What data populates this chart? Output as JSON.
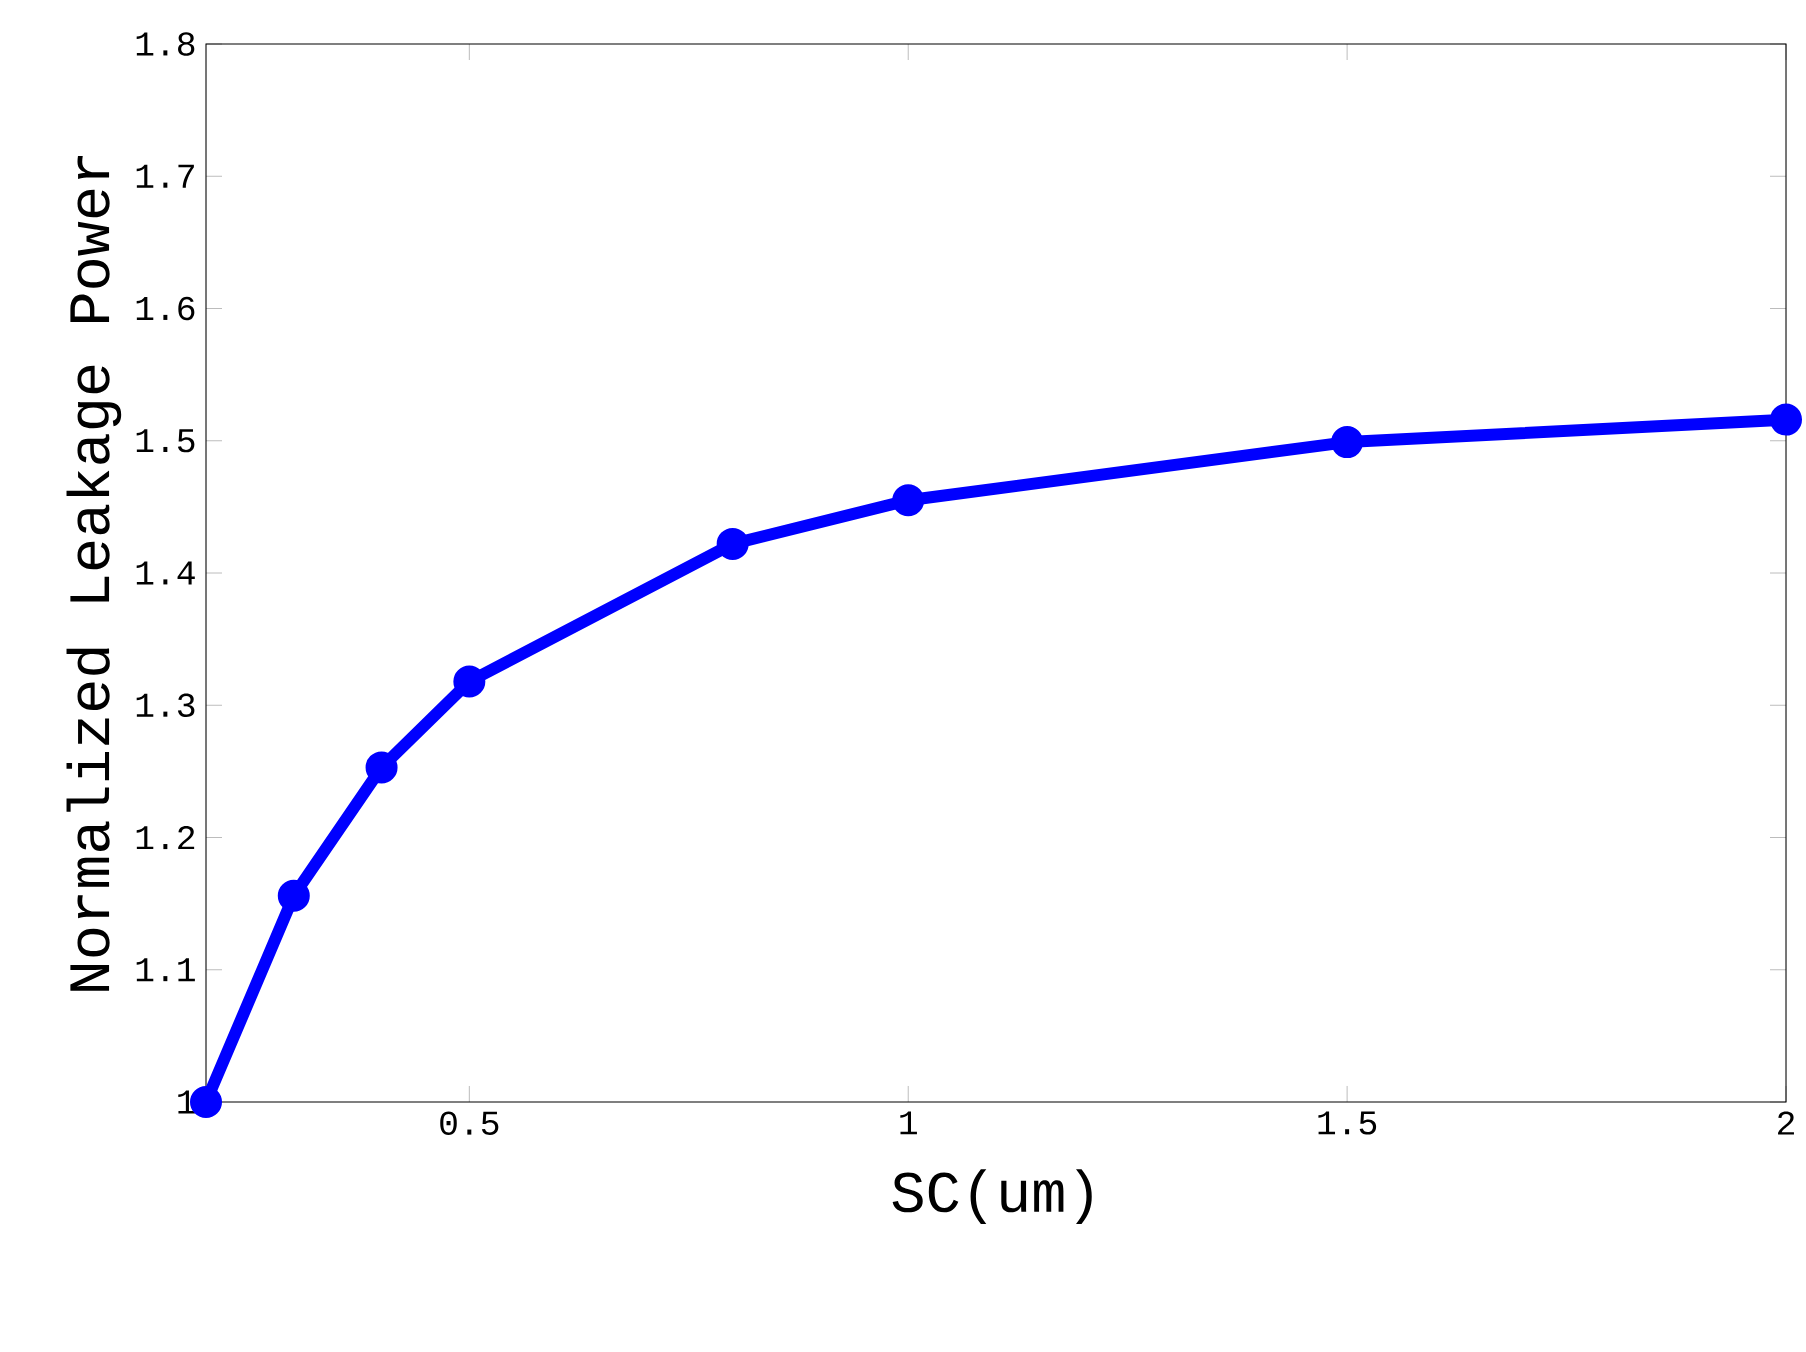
{
  "chart_data": {
    "type": "line",
    "xlabel": "SC(um)",
    "ylabel": "Normalized Leakage Power",
    "x": [
      0.2,
      0.3,
      0.4,
      0.5,
      0.8,
      1,
      1.5,
      2
    ],
    "series": [
      {
        "color": "#0000ff",
        "values": [
          1.0,
          1.156,
          1.253,
          1.318,
          1.422,
          1.455,
          1.499,
          1.516
        ]
      }
    ],
    "xlim": [
      0.2,
      2
    ],
    "ylim": [
      1,
      1.8
    ],
    "xticks": [
      0.5,
      1,
      1.5,
      2
    ],
    "yticks": [
      1,
      1.1,
      1.2,
      1.3,
      1.4,
      1.5,
      1.6,
      1.7,
      1.8
    ],
    "grid": false,
    "marker": "circle",
    "line_style": "solid"
  }
}
